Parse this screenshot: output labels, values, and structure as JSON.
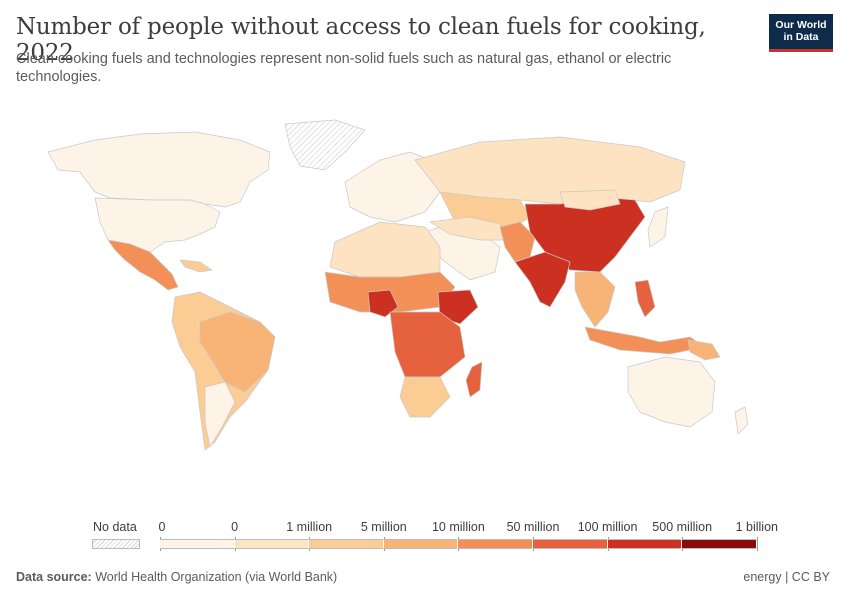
{
  "title": "Number of people without access to clean fuels for cooking, 2022",
  "subtitle": "Clean cooking fuels and technologies represent non-solid fuels such as natural gas, ethanol or electric technologies.",
  "logo": {
    "line1": "Our World",
    "line2": "in Data",
    "bg_color": "#0f2b4c",
    "accent_color": "#c8342b"
  },
  "legend": {
    "nodata_label": "No data",
    "ticks": [
      "0",
      "0",
      "1 million",
      "5 million",
      "10 million",
      "50 million",
      "100 million",
      "500 million",
      "1 billion"
    ],
    "bin_colors": [
      "#fdf3e6",
      "#fde3c2",
      "#fbcc94",
      "#f8b376",
      "#f39057",
      "#e6623e",
      "#cc3020",
      "#8a0b0b"
    ]
  },
  "map_colors": {
    "ocean": "#ffffff",
    "border": "#c9c9c9",
    "zero": "#fdf3e6",
    "low": "#fde3c2",
    "mid": "#fbcc94",
    "midhigh": "#f8b376",
    "high": "#f39057",
    "veryhigh": "#e6623e",
    "top": "#cc3020",
    "nodata": "#efefef"
  },
  "footer": {
    "source_label": "Data source:",
    "source_text": "World Health Organization (via World Bank)",
    "license": "energy | CC BY"
  }
}
